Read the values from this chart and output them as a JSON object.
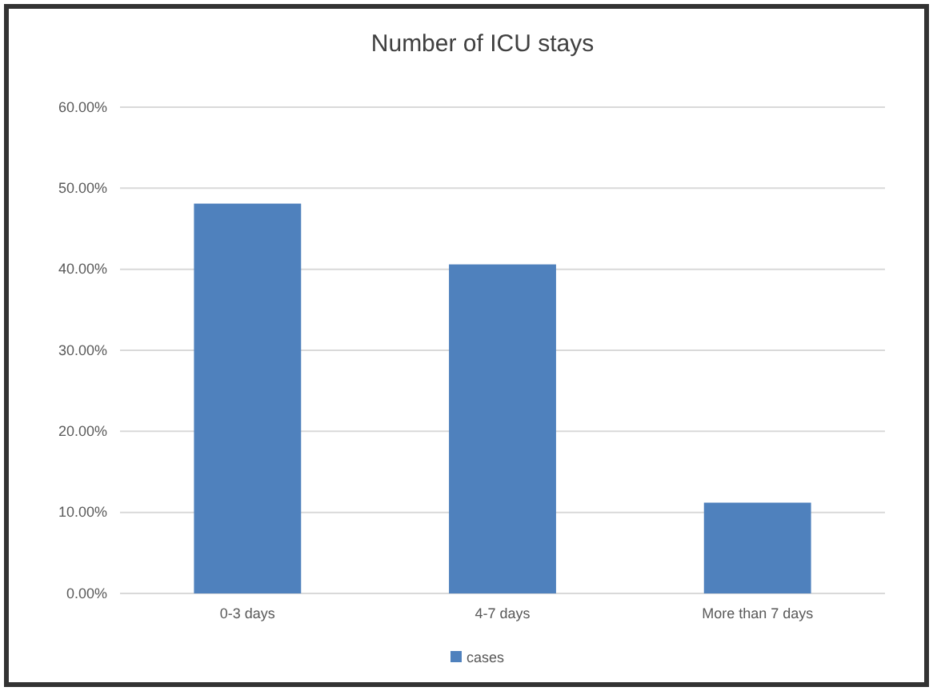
{
  "chart_data": {
    "type": "bar",
    "title": "Number of ICU stays",
    "categories": [
      "0-3 days",
      "4-7 days",
      "More than 7 days"
    ],
    "series": [
      {
        "name": "cases",
        "color": "#4f81bd",
        "values": [
          48.1,
          40.6,
          11.2
        ]
      }
    ],
    "ylim": [
      0,
      60
    ],
    "yticks": [
      {
        "value": 0,
        "label": "0.00%"
      },
      {
        "value": 10,
        "label": "10.00%"
      },
      {
        "value": 20,
        "label": "20.00%"
      },
      {
        "value": 30,
        "label": "30.00%"
      },
      {
        "value": 40,
        "label": "40.00%"
      },
      {
        "value": 50,
        "label": "50.00%"
      },
      {
        "value": 60,
        "label": "60.00%"
      }
    ],
    "grid": "y",
    "legend": "bottom"
  }
}
